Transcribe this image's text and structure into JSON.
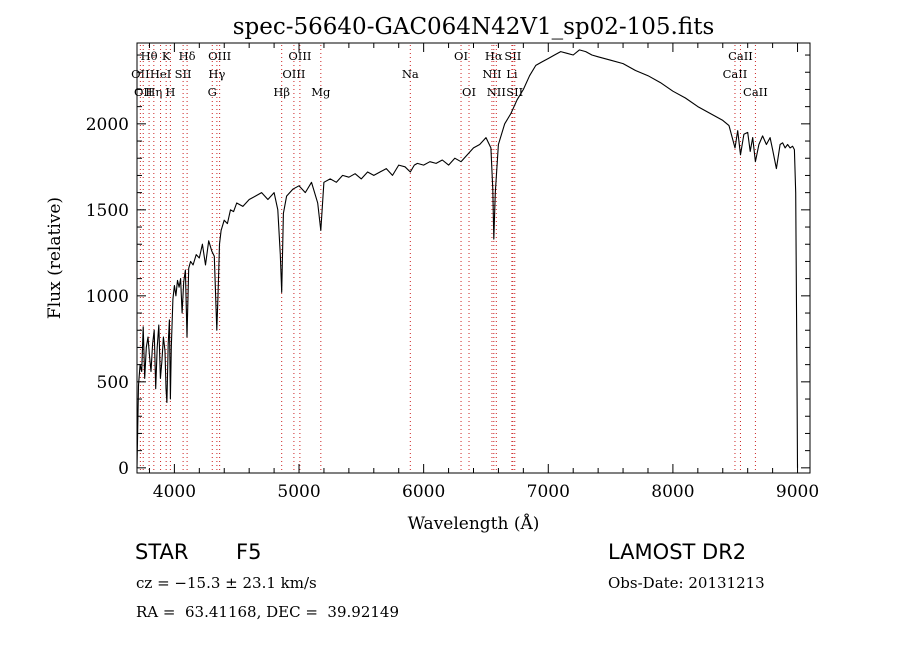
{
  "chart_data": {
    "type": "line",
    "title": "spec-56640-GAC064N42V1_sp02-105.fits",
    "xlabel": "Wavelength (Å)",
    "ylabel": "Flux (relative)",
    "xlim": [
      3700,
      9100
    ],
    "ylim": [
      -30,
      2470
    ],
    "xticks": [
      4000,
      5000,
      6000,
      7000,
      8000,
      9000
    ],
    "yticks": [
      0,
      500,
      1000,
      1500,
      2000
    ],
    "grid": false,
    "line_color": "#000000",
    "marker_line_color": "#cc2222",
    "series": [
      {
        "x": [
          3700,
          3712,
          3725,
          3738,
          3750,
          3762,
          3775,
          3788,
          3800,
          3812,
          3825,
          3838,
          3850,
          3862,
          3875,
          3888,
          3900,
          3912,
          3925,
          3933,
          3940,
          3950,
          3960,
          3968,
          3975,
          3988,
          4000,
          4012,
          4025,
          4038,
          4050,
          4062,
          4075,
          4088,
          4101,
          4115,
          4130,
          4150,
          4175,
          4200,
          4225,
          4250,
          4275,
          4300,
          4320,
          4340,
          4350,
          4362,
          4375,
          4400,
          4425,
          4450,
          4475,
          4500,
          4550,
          4600,
          4650,
          4700,
          4750,
          4800,
          4830,
          4850,
          4861,
          4875,
          4900,
          4950,
          5000,
          5050,
          5100,
          5150,
          5175,
          5200,
          5250,
          5300,
          5350,
          5400,
          5450,
          5500,
          5550,
          5600,
          5650,
          5700,
          5750,
          5800,
          5850,
          5893,
          5925,
          5950,
          6000,
          6050,
          6100,
          6150,
          6200,
          6250,
          6300,
          6350,
          6400,
          6450,
          6500,
          6540,
          6555,
          6563,
          6575,
          6600,
          6650,
          6700,
          6750,
          6800,
          6850,
          6900,
          6950,
          7000,
          7050,
          7100,
          7150,
          7200,
          7250,
          7300,
          7350,
          7400,
          7500,
          7600,
          7700,
          7800,
          7900,
          8000,
          8100,
          8200,
          8300,
          8400,
          8450,
          8498,
          8520,
          8542,
          8570,
          8600,
          8620,
          8640,
          8662,
          8690,
          8720,
          8750,
          8780,
          8800,
          8830,
          8860,
          8880,
          8900,
          8920,
          8940,
          8960,
          8975,
          8985,
          8995,
          9000
        ],
        "y": [
          0,
          480,
          600,
          560,
          820,
          520,
          700,
          760,
          650,
          560,
          720,
          800,
          460,
          700,
          830,
          520,
          620,
          760,
          680,
          460,
          380,
          720,
          860,
          400,
          700,
          980,
          1060,
          1000,
          1090,
          1050,
          1100,
          900,
          1080,
          1150,
          760,
          1160,
          1200,
          1180,
          1240,
          1220,
          1300,
          1180,
          1320,
          1260,
          1230,
          800,
          1000,
          1300,
          1380,
          1440,
          1420,
          1500,
          1490,
          1540,
          1520,
          1560,
          1580,
          1600,
          1560,
          1600,
          1500,
          1240,
          1020,
          1480,
          1580,
          1620,
          1640,
          1600,
          1660,
          1540,
          1380,
          1660,
          1680,
          1660,
          1700,
          1690,
          1710,
          1680,
          1720,
          1700,
          1720,
          1740,
          1700,
          1760,
          1750,
          1720,
          1760,
          1770,
          1760,
          1780,
          1770,
          1790,
          1760,
          1800,
          1780,
          1820,
          1860,
          1880,
          1920,
          1860,
          1620,
          1330,
          1600,
          1880,
          2000,
          2060,
          2140,
          2200,
          2280,
          2340,
          2360,
          2380,
          2400,
          2420,
          2410,
          2400,
          2430,
          2420,
          2400,
          2390,
          2370,
          2350,
          2310,
          2280,
          2240,
          2190,
          2150,
          2100,
          2060,
          2020,
          1990,
          1860,
          1960,
          1820,
          1940,
          1950,
          1840,
          1920,
          1780,
          1880,
          1930,
          1880,
          1920,
          1850,
          1740,
          1880,
          1890,
          1860,
          1880,
          1860,
          1870,
          1850,
          1600,
          600,
          0
        ]
      }
    ],
    "lines": [
      {
        "x": 3727,
        "label": "OII",
        "row": 1
      },
      {
        "x": 3750,
        "label": "OII",
        "row": 2
      },
      {
        "x": 3797,
        "label": "Hθ",
        "row": 0
      },
      {
        "x": 3835,
        "label": "Hη",
        "row": 2
      },
      {
        "x": 3889,
        "label": "HeI",
        "row": 1
      },
      {
        "x": 3934,
        "label": "K",
        "row": 0
      },
      {
        "x": 3968,
        "label": "H",
        "row": 2
      },
      {
        "x": 4070,
        "label": "SII",
        "row": 1
      },
      {
        "x": 4102,
        "label": "Hδ",
        "row": 0
      },
      {
        "x": 4304,
        "label": "G",
        "row": 2
      },
      {
        "x": 4341,
        "label": "Hγ",
        "row": 1
      },
      {
        "x": 4363,
        "label": "OIII",
        "row": 0
      },
      {
        "x": 4861,
        "label": "Hβ",
        "row": 2
      },
      {
        "x": 4959,
        "label": "OIII",
        "row": 1
      },
      {
        "x": 5007,
        "label": "OIII",
        "row": 0
      },
      {
        "x": 5175,
        "label": "Mg",
        "row": 2
      },
      {
        "x": 5893,
        "label": "Na",
        "row": 1
      },
      {
        "x": 6300,
        "label": "OI",
        "row": 0
      },
      {
        "x": 6364,
        "label": "OI",
        "row": 2
      },
      {
        "x": 6548,
        "label": "NII",
        "row": 1
      },
      {
        "x": 6563,
        "label": "Hα",
        "row": 0
      },
      {
        "x": 6583,
        "label": "NII",
        "row": 2
      },
      {
        "x": 6708,
        "label": "Li",
        "row": 1
      },
      {
        "x": 6716,
        "label": "SII",
        "row": 0
      },
      {
        "x": 6731,
        "label": "SII",
        "row": 2
      },
      {
        "x": 8498,
        "label": "CaII",
        "row": 1
      },
      {
        "x": 8542,
        "label": "CaII",
        "row": 0
      },
      {
        "x": 8662,
        "label": "CaII",
        "row": 2
      }
    ]
  },
  "info": {
    "class": "STAR",
    "subclass": "F5",
    "cz": "cz = −15.3 ± 23.1 km/s",
    "radec": "RA =  63.41168, DEC =  39.92149",
    "release": "LAMOST DR2",
    "obsdate": "Obs-Date: 20131213"
  }
}
